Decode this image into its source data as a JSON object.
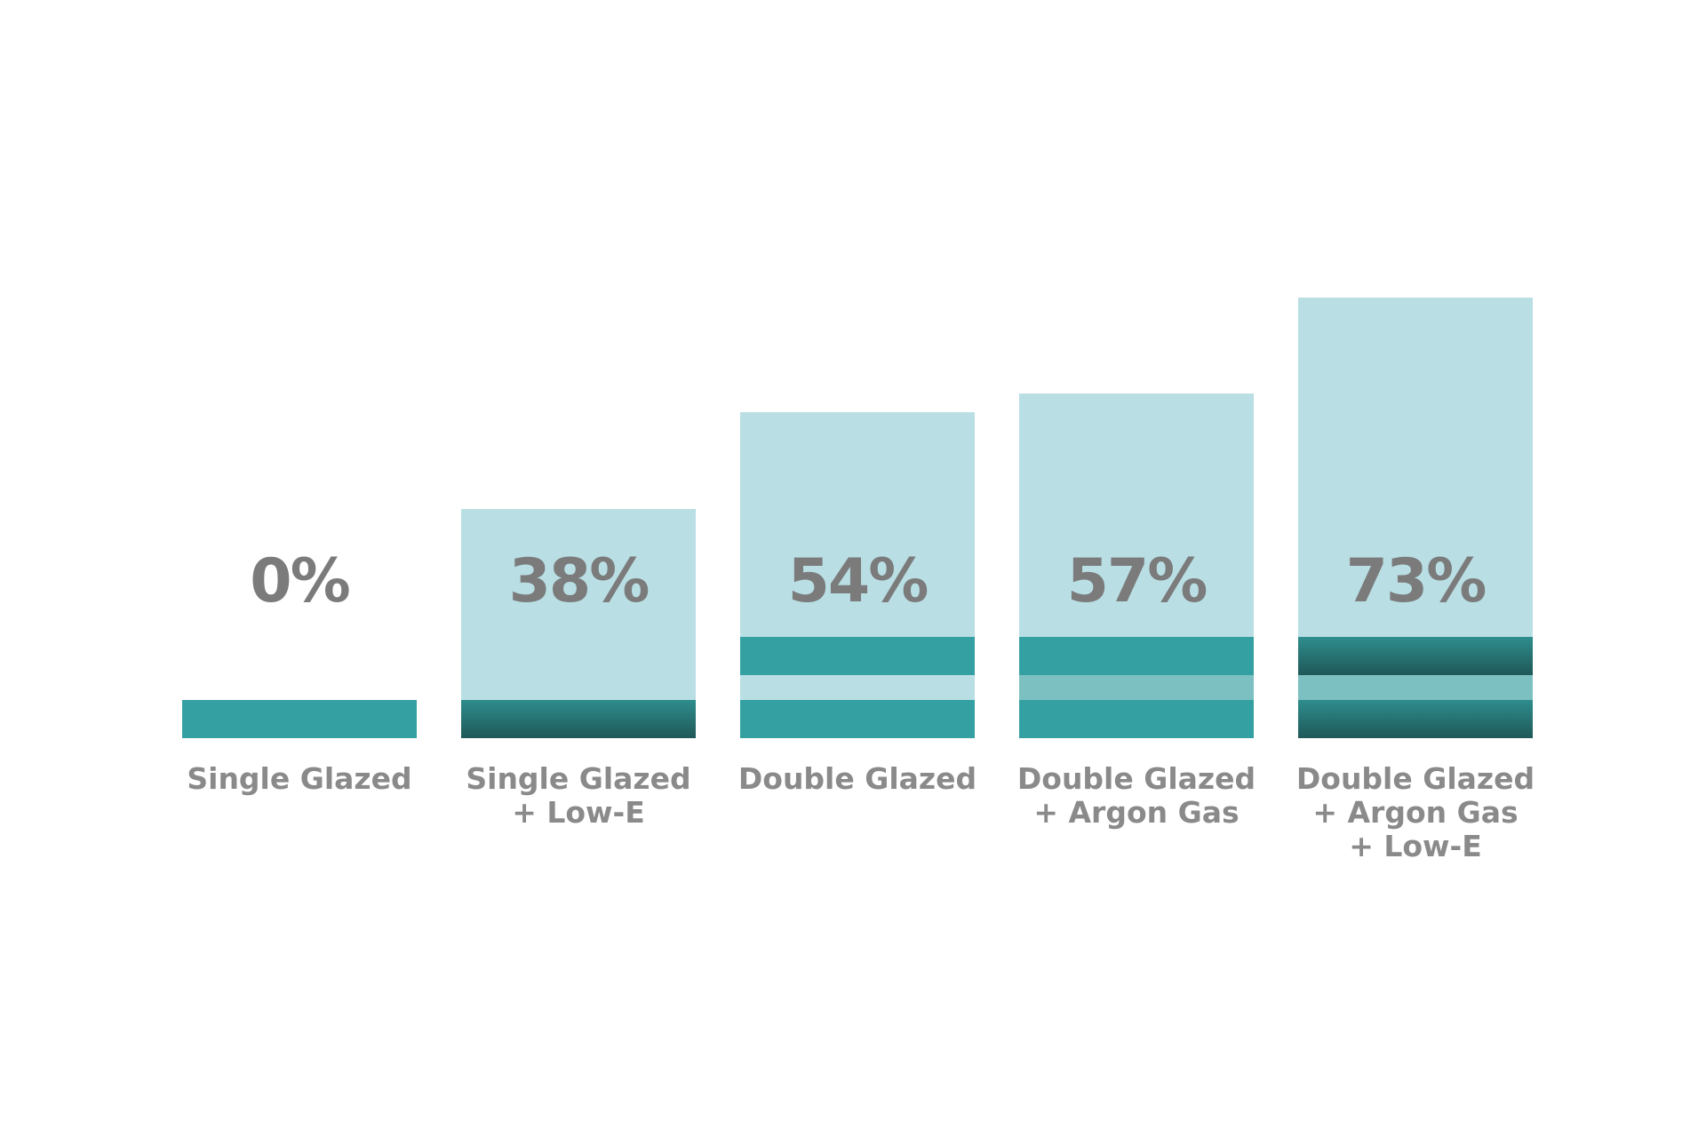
{
  "chart_data": {
    "type": "bar",
    "categories": [
      "Single Glazed",
      "Single Glazed\n+ Low-E",
      "Double Glazed",
      "Double Glazed\n+ Argon Gas",
      "Double Glazed\n+ Argon Gas\n+ Low-E"
    ],
    "values": [
      0,
      38,
      54,
      57,
      73
    ],
    "value_labels": [
      "0%",
      "38%",
      "54%",
      "57%",
      "73%"
    ],
    "color": "#b9dfe5"
  }
}
